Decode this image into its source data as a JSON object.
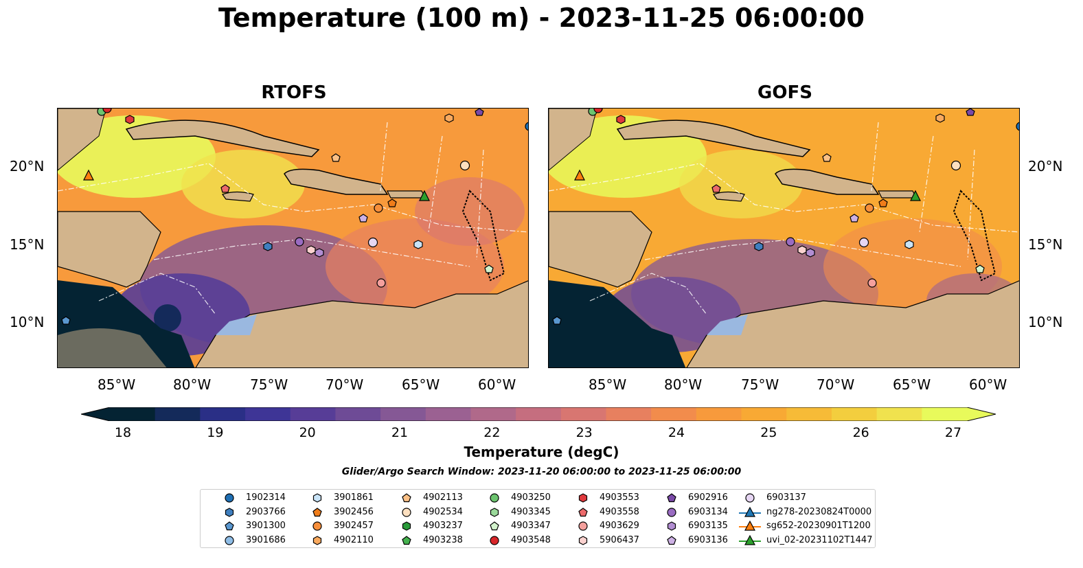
{
  "title": "Temperature (100 m) - 2023-11-25 06:00:00",
  "panels": [
    {
      "title": "RTOFS"
    },
    {
      "title": "GOFS"
    }
  ],
  "axes": {
    "lon_ticks": [
      "85°W",
      "80°W",
      "75°W",
      "70°W",
      "65°W",
      "60°W"
    ],
    "lat_ticks": [
      "20°N",
      "15°N",
      "10°N"
    ]
  },
  "colorbar": {
    "label": "Temperature (degC)",
    "ticks": [
      "18",
      "19",
      "20",
      "21",
      "22",
      "23",
      "24",
      "25",
      "26",
      "27"
    ],
    "colors": [
      "#042333",
      "#142a5a",
      "#2a2f86",
      "#3e3596",
      "#573d97",
      "#6e4b96",
      "#855895",
      "#9b6192",
      "#b0698a",
      "#c56e7f",
      "#d87671",
      "#e7805f",
      "#f28c4c",
      "#f79a3c",
      "#f8a934",
      "#f6bb37",
      "#f3ce3e",
      "#f0e24e",
      "#e8fa5b"
    ]
  },
  "search_window": "Glider/Argo Search Window: 2023-11-20 06:00:00 to 2023-11-25 06:00:00",
  "legend": [
    {
      "label": "1902314",
      "marker": "circle",
      "color": "#1f6fb4"
    },
    {
      "label": "2903766",
      "marker": "hexagon",
      "color": "#3f7fbf"
    },
    {
      "label": "3901300",
      "marker": "pentagon",
      "color": "#5a97cf"
    },
    {
      "label": "3901686",
      "marker": "circle",
      "color": "#8fbde6"
    },
    {
      "label": "3901861",
      "marker": "hexagon",
      "color": "#c9e4f8"
    },
    {
      "label": "3902456",
      "marker": "pentagon",
      "color": "#f07d1a"
    },
    {
      "label": "3902457",
      "marker": "circle",
      "color": "#f78f3b"
    },
    {
      "label": "4902110",
      "marker": "hexagon",
      "color": "#f9a95e"
    },
    {
      "label": "4902113",
      "marker": "pentagon",
      "color": "#fbc086"
    },
    {
      "label": "4902534",
      "marker": "circle",
      "color": "#fde0c0"
    },
    {
      "label": "4903237",
      "marker": "hexagon",
      "color": "#2a9a3a"
    },
    {
      "label": "4903238",
      "marker": "pentagon",
      "color": "#45b24f"
    },
    {
      "label": "4903250",
      "marker": "circle",
      "color": "#6cc46f"
    },
    {
      "label": "4903345",
      "marker": "hexagon",
      "color": "#9ad99a"
    },
    {
      "label": "4903347",
      "marker": "pentagon",
      "color": "#d2f2cc"
    },
    {
      "label": "4903548",
      "marker": "circle",
      "color": "#d8262a"
    },
    {
      "label": "4903553",
      "marker": "hexagon",
      "color": "#e0393d"
    },
    {
      "label": "4903558",
      "marker": "pentagon",
      "color": "#ec6a6b"
    },
    {
      "label": "4903629",
      "marker": "circle",
      "color": "#f4a09d"
    },
    {
      "label": "5906437",
      "marker": "hexagon",
      "color": "#fbd2cf"
    },
    {
      "label": "6902916",
      "marker": "pentagon",
      "color": "#7a4aa8"
    },
    {
      "label": "6903134",
      "marker": "circle",
      "color": "#9a6cc2"
    },
    {
      "label": "6903135",
      "marker": "hexagon",
      "color": "#b28ed2"
    },
    {
      "label": "6903136",
      "marker": "pentagon",
      "color": "#cdb1e4"
    },
    {
      "label": "6903137",
      "marker": "circle",
      "color": "#e6d6f3"
    },
    {
      "label": "ng278-20230824T0000",
      "marker": "triangle",
      "color": "#1f77b4"
    },
    {
      "label": "sg652-20230901T1200",
      "marker": "triangle",
      "color": "#ff7f0e"
    },
    {
      "label": "uvi_02-20231102T1447",
      "marker": "triangle",
      "color": "#2ca02c"
    }
  ],
  "map_colors": {
    "ocean_shallow": "#9ab8e0",
    "land": "#d2b48c"
  }
}
